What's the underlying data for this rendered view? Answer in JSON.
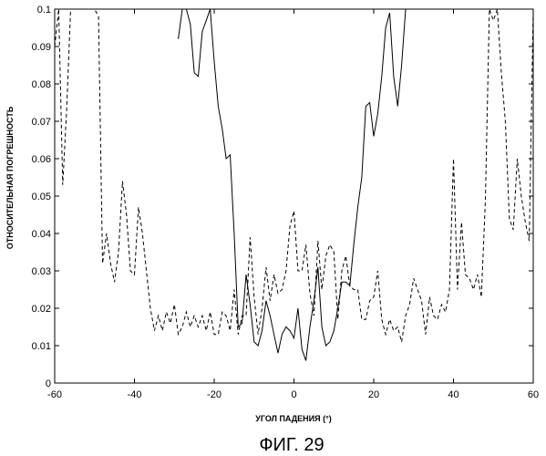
{
  "chart_data": {
    "type": "line",
    "title": "",
    "caption": "ФИГ. 29",
    "xlabel": "УГОЛ ПАДЕНИЯ (°)",
    "ylabel": "ОТНОСИТЕЛЬНАЯ ПОГРЕШНОСТЬ",
    "xlim": [
      -60,
      60
    ],
    "ylim": [
      0,
      0.1
    ],
    "xticks": [
      "-60",
      "-40",
      "-20",
      "0",
      "20",
      "40",
      "60"
    ],
    "yticks": [
      "0",
      "0.01",
      "0.02",
      "0.03",
      "0.04",
      "0.05",
      "0.06",
      "0.07",
      "0.08",
      "0.09",
      "0.1"
    ],
    "grid": false,
    "series": [
      {
        "style": "solid",
        "color": "#000000",
        "x": [
          -29,
          -28,
          -27,
          -26,
          -25,
          -24,
          -23,
          -22,
          -21,
          -20,
          -19,
          -18,
          -17,
          -16,
          -15,
          -14,
          -13,
          -12,
          -11,
          -10,
          -9,
          -8,
          -7,
          -6,
          -5,
          -4,
          -3,
          -2,
          -1,
          0,
          1,
          2,
          3,
          4,
          5,
          6,
          7,
          8,
          9,
          10,
          11,
          12,
          13,
          14,
          15,
          16,
          17,
          18,
          19,
          20,
          21,
          22,
          23,
          24,
          25,
          26,
          27,
          28
        ],
        "y": [
          0.092,
          0.1,
          0.1,
          0.096,
          0.083,
          0.082,
          0.094,
          0.097,
          0.1,
          0.086,
          0.074,
          0.068,
          0.06,
          0.061,
          0.04,
          0.015,
          0.016,
          0.029,
          0.021,
          0.011,
          0.01,
          0.014,
          0.022,
          0.018,
          0.013,
          0.008,
          0.013,
          0.015,
          0.014,
          0.012,
          0.02,
          0.009,
          0.006,
          0.015,
          0.022,
          0.031,
          0.015,
          0.01,
          0.011,
          0.014,
          0.02,
          0.027,
          0.027,
          0.026,
          0.037,
          0.047,
          0.055,
          0.074,
          0.075,
          0.066,
          0.072,
          0.082,
          0.095,
          0.099,
          0.082,
          0.074,
          0.085,
          0.1
        ]
      },
      {
        "style": "dashed",
        "color": "#000000",
        "x": [
          -60,
          -59,
          -58,
          -57,
          -56,
          -50,
          -49,
          -48,
          -47,
          -46,
          -45,
          -44,
          -43,
          -42,
          -41,
          -40,
          -39,
          -38,
          -37,
          -36,
          -35,
          -34,
          -33,
          -32,
          -31,
          -30,
          -29,
          -28,
          -27,
          -26,
          -25,
          -24,
          -23,
          -22,
          -21,
          -20,
          -19,
          -18,
          -17,
          -16,
          -15,
          -14,
          -13,
          -12,
          -11,
          -10,
          -9,
          -8,
          -7,
          -6,
          -5,
          -4,
          -3,
          -2,
          -1,
          0,
          1,
          2,
          3,
          4,
          5,
          6,
          7,
          8,
          9,
          10,
          11,
          12,
          13,
          14,
          15,
          16,
          17,
          18,
          19,
          20,
          21,
          22,
          23,
          24,
          25,
          26,
          27,
          28,
          29,
          30,
          31,
          32,
          33,
          34,
          35,
          36,
          37,
          38,
          39,
          40,
          41,
          42,
          43,
          44,
          45,
          46,
          47,
          48,
          49,
          50,
          51,
          52,
          53,
          54,
          55,
          56,
          57,
          58,
          59,
          60
        ],
        "y": [
          0.09,
          0.1,
          0.053,
          0.073,
          0.1,
          0.1,
          0.098,
          0.032,
          0.04,
          0.032,
          0.027,
          0.035,
          0.054,
          0.045,
          0.03,
          0.029,
          0.047,
          0.04,
          0.03,
          0.02,
          0.014,
          0.018,
          0.014,
          0.019,
          0.016,
          0.021,
          0.013,
          0.015,
          0.019,
          0.015,
          0.018,
          0.015,
          0.018,
          0.014,
          0.019,
          0.013,
          0.013,
          0.019,
          0.018,
          0.014,
          0.025,
          0.013,
          0.018,
          0.018,
          0.039,
          0.023,
          0.013,
          0.02,
          0.031,
          0.022,
          0.029,
          0.024,
          0.025,
          0.03,
          0.042,
          0.046,
          0.03,
          0.03,
          0.037,
          0.024,
          0.018,
          0.038,
          0.025,
          0.034,
          0.037,
          0.035,
          0.017,
          0.03,
          0.034,
          0.026,
          0.025,
          0.025,
          0.017,
          0.017,
          0.022,
          0.023,
          0.03,
          0.017,
          0.013,
          0.017,
          0.014,
          0.015,
          0.011,
          0.018,
          0.021,
          0.028,
          0.025,
          0.022,
          0.013,
          0.023,
          0.018,
          0.017,
          0.021,
          0.019,
          0.025,
          0.06,
          0.025,
          0.043,
          0.029,
          0.028,
          0.025,
          0.029,
          0.023,
          0.049,
          0.1,
          0.097,
          0.1,
          0.083,
          0.07,
          0.044,
          0.041,
          0.06,
          0.05,
          0.043,
          0.038,
          0.1
        ]
      }
    ]
  }
}
